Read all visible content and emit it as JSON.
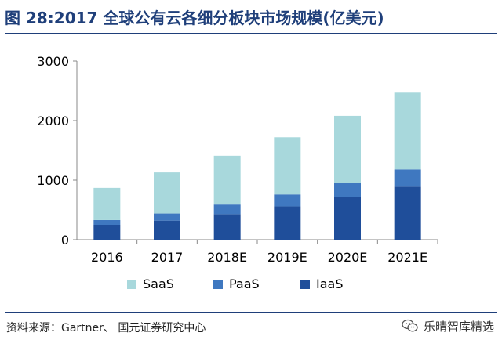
{
  "title": "图 28:2017 全球公有云各细分板块市场规模(亿美元)",
  "source_text": "资料来源：Gartner、 国元证券研究中心",
  "watermark_text": "乐晴智库精选",
  "watermark_icon": "wechat-icon",
  "colors": {
    "title": "#1f3f7a",
    "saas": "#a8d8dc",
    "paas": "#3f78c0",
    "iaas": "#1f4e9a",
    "axis": "#888888"
  },
  "chart_data": {
    "type": "bar",
    "stacked": true,
    "categories": [
      "2016",
      "2017",
      "2018E",
      "2019E",
      "2020E",
      "2021E"
    ],
    "series": [
      {
        "name": "IaaS",
        "values": [
          250,
          320,
          430,
          560,
          720,
          890
        ]
      },
      {
        "name": "PaaS",
        "values": [
          80,
          120,
          160,
          200,
          240,
          290
        ]
      },
      {
        "name": "SaaS",
        "values": [
          540,
          690,
          820,
          960,
          1120,
          1290
        ]
      }
    ],
    "ylim": [
      0,
      3000
    ],
    "yticks": [
      0,
      1000,
      2000,
      3000
    ],
    "grid": false,
    "legend_placement": "bottom",
    "legend_order": [
      "SaaS",
      "PaaS",
      "IaaS"
    ],
    "xlabel": "",
    "ylabel": ""
  }
}
